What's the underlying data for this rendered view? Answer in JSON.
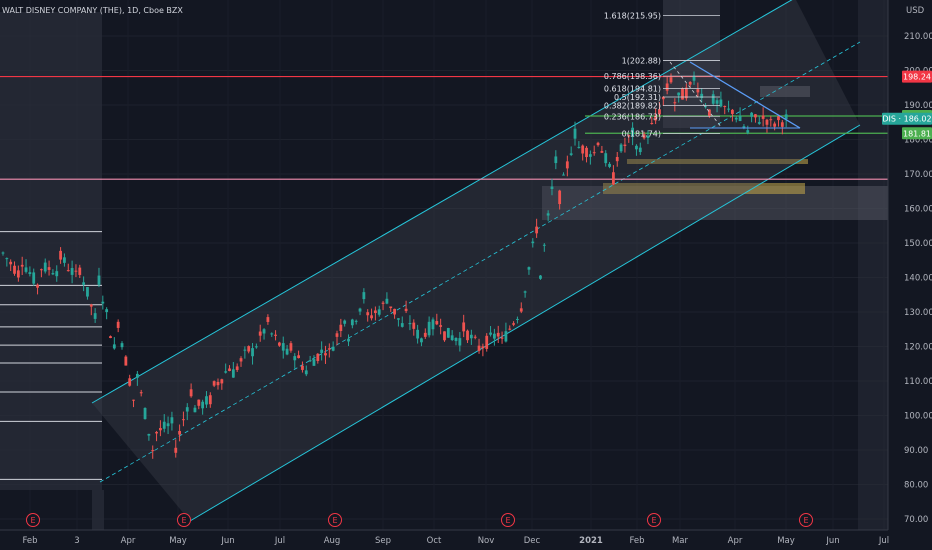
{
  "header": {
    "symbol_title": "WALT DISNEY COMPANY (THE), 1D, Cboe BZX"
  },
  "chart_data": {
    "type": "candlestick",
    "symbol": "DIS",
    "currency": "USD",
    "ylim": [
      68,
      218
    ],
    "y_ticks": [
      70,
      80,
      90,
      100,
      110,
      120,
      130,
      140,
      150,
      160,
      170,
      180,
      190,
      200,
      210
    ],
    "x_ticks": [
      "Feb",
      "3",
      "Apr",
      "May",
      "Jun",
      "Jul",
      "Aug",
      "Sep",
      "Oct",
      "Nov",
      "Dec",
      "2021",
      "Feb",
      "Mar",
      "Apr",
      "May",
      "Jun",
      "Jul"
    ],
    "price_labels": [
      {
        "text": "198.24",
        "value": 198.24,
        "color": "#f23645"
      },
      {
        "text": "186.81",
        "value": 186.81,
        "color": "#4caf50"
      },
      {
        "text": "DIS · 186.02",
        "value": 186.02,
        "color": "#26a69a"
      },
      {
        "text": "181.81",
        "value": 181.81,
        "color": "#4caf50"
      }
    ],
    "fibonacci": [
      {
        "label": "1.618(215.95)",
        "value": 215.95
      },
      {
        "label": "1(202.88)",
        "value": 202.88
      },
      {
        "label": "0.786(198.36)",
        "value": 198.36
      },
      {
        "label": "0.618(194.81)",
        "value": 194.81
      },
      {
        "label": "0.5(192.31)",
        "value": 192.31
      },
      {
        "label": "0.382(189.82)",
        "value": 189.82
      },
      {
        "label": "0.236(186.73)",
        "value": 186.73
      },
      {
        "label": "0(181.74)",
        "value": 181.74
      }
    ],
    "horizontal_levels": [
      {
        "value": 198.24,
        "color": "#f23645"
      },
      {
        "value": 168.5,
        "color": "#f48fb1"
      },
      {
        "value": 186.81,
        "color": "#4caf50"
      },
      {
        "value": 181.81,
        "color": "#4caf50"
      }
    ],
    "left_levels": [
      153.3,
      137.7,
      132.1,
      125.7,
      120.4,
      115.2,
      106.8,
      98.3,
      81.5
    ],
    "earnings_marker": "E",
    "earnings_count": 6,
    "price_path": [
      [
        147,
        144
      ],
      [
        145,
        140
      ],
      [
        143,
        136
      ],
      [
        146,
        142
      ],
      [
        143,
        139
      ],
      [
        140,
        125
      ],
      [
        128,
        115
      ],
      [
        112,
        100
      ],
      [
        95,
        86
      ],
      [
        90,
        98
      ],
      [
        102,
        110
      ],
      [
        108,
        105
      ],
      [
        112,
        115
      ],
      [
        118,
        120
      ],
      [
        124,
        128
      ],
      [
        120,
        117
      ],
      [
        115,
        112
      ],
      [
        117,
        120
      ],
      [
        122,
        130
      ],
      [
        128,
        136
      ],
      [
        135,
        132
      ],
      [
        130,
        125
      ],
      [
        124,
        121
      ],
      [
        124,
        128
      ],
      [
        126,
        122
      ],
      [
        120,
        119
      ],
      [
        120,
        124
      ],
      [
        128,
        130
      ],
      [
        135,
        156
      ],
      [
        160,
        176
      ],
      [
        178,
        183
      ],
      [
        182,
        176
      ],
      [
        174,
        168
      ],
      [
        175,
        182
      ],
      [
        183,
        184
      ],
      [
        190,
        198
      ],
      [
        200,
        195
      ],
      [
        192,
        188
      ],
      [
        190,
        188
      ],
      [
        186,
        182
      ],
      [
        184,
        186
      ],
      [
        186,
        186
      ]
    ]
  }
}
